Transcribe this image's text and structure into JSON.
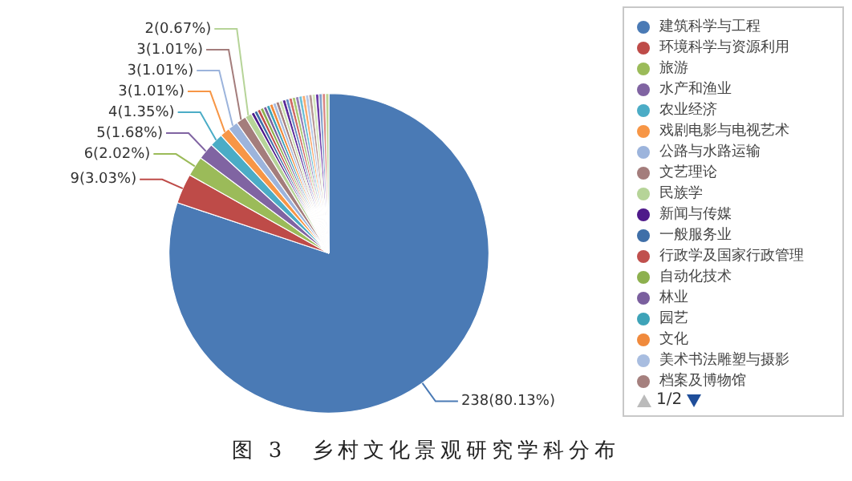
{
  "chart_data": {
    "type": "pie",
    "title": "图 3　乡村文化景观研究学科分布",
    "categories": [
      "建筑科学与工程",
      "环境科学与资源利用",
      "旅游",
      "水产和渔业",
      "农业经济",
      "戏剧电影与电视艺术",
      "公路与水路运输",
      "文艺理论",
      "民族学",
      "新闻与传媒",
      "一般服务业",
      "行政学及国家行政管理",
      "自动化技术",
      "林业",
      "园艺",
      "文化",
      "美术书法雕塑与摄影",
      "档案及博物馆",
      null,
      null,
      null,
      null,
      null,
      null,
      null,
      null,
      null,
      null,
      null,
      null,
      null,
      null,
      null
    ],
    "values": [
      238,
      9,
      6,
      5,
      4,
      3,
      3,
      3,
      2,
      1,
      1,
      1,
      1,
      1,
      1,
      1,
      1,
      1,
      1,
      1,
      1,
      1,
      1,
      1,
      1,
      1,
      1,
      1,
      1,
      1,
      1,
      1,
      1
    ],
    "colors": [
      "#4a7ab5",
      "#be4b48",
      "#9bbb59",
      "#8064a2",
      "#4bacc6",
      "#f79646",
      "#9cb4dc",
      "#a47d7c",
      "#b6d498",
      "#4f1a8a",
      "#3f6fa8",
      "#c0504d",
      "#8db04e",
      "#7a5f9e",
      "#3ea3b8",
      "#f08a3c",
      "#a8bde0",
      "#a5807e",
      "#c9dfae",
      "#5b2a99",
      "#6a8fc4",
      "#d06a66",
      "#a9c875",
      "#977fb6",
      "#6cc0d6",
      "#f8ab72",
      "#b7c8e6",
      "#b89896",
      "#d3e6bd",
      "#6d3ca8",
      "#83a2cc",
      "#d98784",
      "#bcd492"
    ],
    "value_labels": [
      "238(80.13%)",
      "9(3.03%)",
      "6(2.02%)",
      "5(1.68%)",
      "4(1.35%)",
      "3(1.01%)",
      "3(1.01%)",
      "3(1.01%)",
      "2(0.67%)",
      null,
      null,
      null,
      null,
      null,
      null,
      null,
      null,
      null,
      null,
      null,
      null,
      null,
      null,
      null,
      null,
      null,
      null,
      null,
      null,
      null,
      null,
      null,
      null
    ],
    "legend": "right",
    "annotations": [
      "1/2"
    ]
  }
}
